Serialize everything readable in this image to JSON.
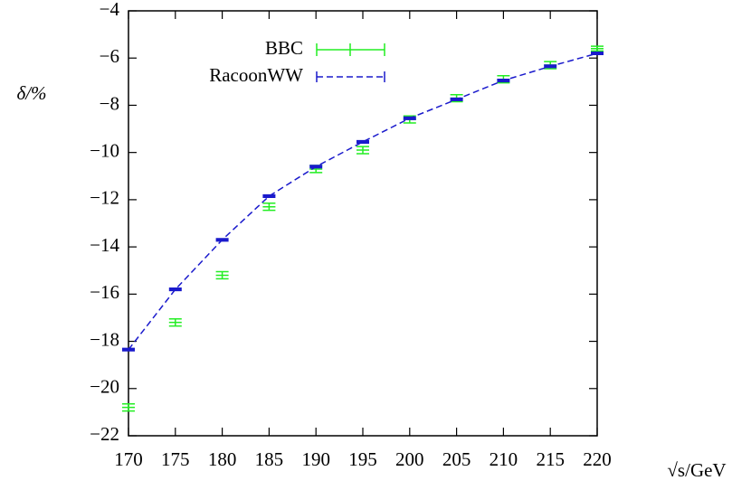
{
  "chart_data": {
    "type": "line",
    "x_label": "√s/GeV",
    "y_label": "δ/%",
    "x": [
      170,
      175,
      180,
      185,
      190,
      195,
      200,
      205,
      210,
      215,
      220
    ],
    "series": [
      {
        "name": "BBC",
        "color": "#22ee22",
        "style": "points",
        "values": [
          -20.8,
          -17.2,
          -15.2,
          -12.3,
          -10.7,
          -9.9,
          -8.6,
          -7.7,
          -6.9,
          -6.3,
          -5.6
        ],
        "errors": [
          0.15,
          0.15,
          0.15,
          0.15,
          0.15,
          0.15,
          0.15,
          0.15,
          0.15,
          0.15,
          0.1
        ]
      },
      {
        "name": "RacoonWW",
        "color": "#1a1acc",
        "style": "dashed",
        "values": [
          -18.35,
          -15.8,
          -13.7,
          -11.85,
          -10.6,
          -9.55,
          -8.55,
          -7.75,
          -6.95,
          -6.35,
          -5.8
        ],
        "errors": [
          0.05,
          0.05,
          0.05,
          0.05,
          0.05,
          0.05,
          0.05,
          0.05,
          0.05,
          0.05,
          0.05
        ]
      }
    ],
    "xlim": [
      170,
      220
    ],
    "ylim": [
      -22,
      -4
    ],
    "xticks": [
      170,
      175,
      180,
      185,
      190,
      195,
      200,
      205,
      210,
      215,
      220
    ],
    "yticks": [
      {
        "value": -22,
        "label": "−22"
      },
      {
        "value": -20,
        "label": "−20"
      },
      {
        "value": -18,
        "label": "−18"
      },
      {
        "value": -16,
        "label": "−16"
      },
      {
        "value": -14,
        "label": "−14"
      },
      {
        "value": -12,
        "label": "−12"
      },
      {
        "value": -10,
        "label": "−10"
      },
      {
        "value": -8,
        "label": "−8"
      },
      {
        "value": -6,
        "label": "−6"
      },
      {
        "value": -4,
        "label": "−4"
      }
    ],
    "legend": "upper left",
    "grid": false
  }
}
